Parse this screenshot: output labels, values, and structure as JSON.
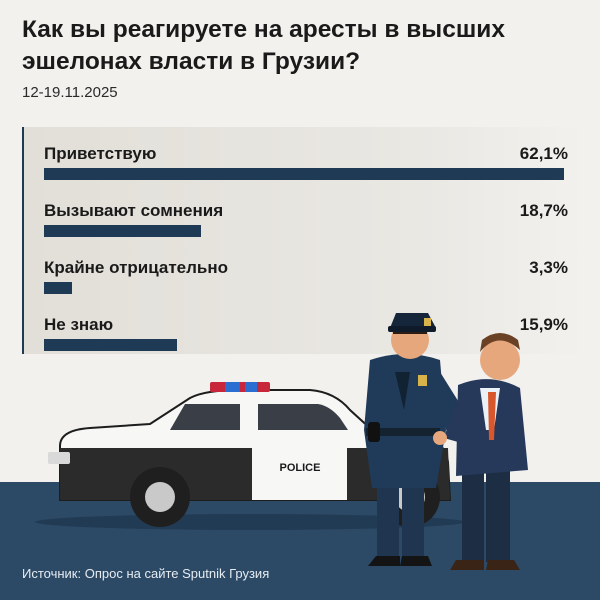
{
  "title": "Как вы реагируете на аресты в высших эшелонах власти в Грузии?",
  "date": "12-19.11.2025",
  "source": "Источник: Опрос на сайте Sputnik Грузия",
  "car_text": "POLICE",
  "colors": {
    "bar": "#1f3a55",
    "background": "#f2f1ee",
    "ground": "#2c4a66"
  },
  "chart_data": {
    "type": "bar",
    "orientation": "horizontal",
    "title": "Как вы реагируете на аресты в высших эшелонах власти в Грузии?",
    "subtitle": "12-19.11.2025",
    "categories": [
      "Приветствую",
      "Вызывают сомнения",
      "Крайне отрицательно",
      "Не знаю"
    ],
    "values": [
      62.1,
      18.7,
      3.3,
      15.9
    ],
    "value_labels": [
      "62,1%",
      "18,7%",
      "3,3%",
      "15,9%"
    ],
    "unit": "%",
    "max": 62.1
  }
}
